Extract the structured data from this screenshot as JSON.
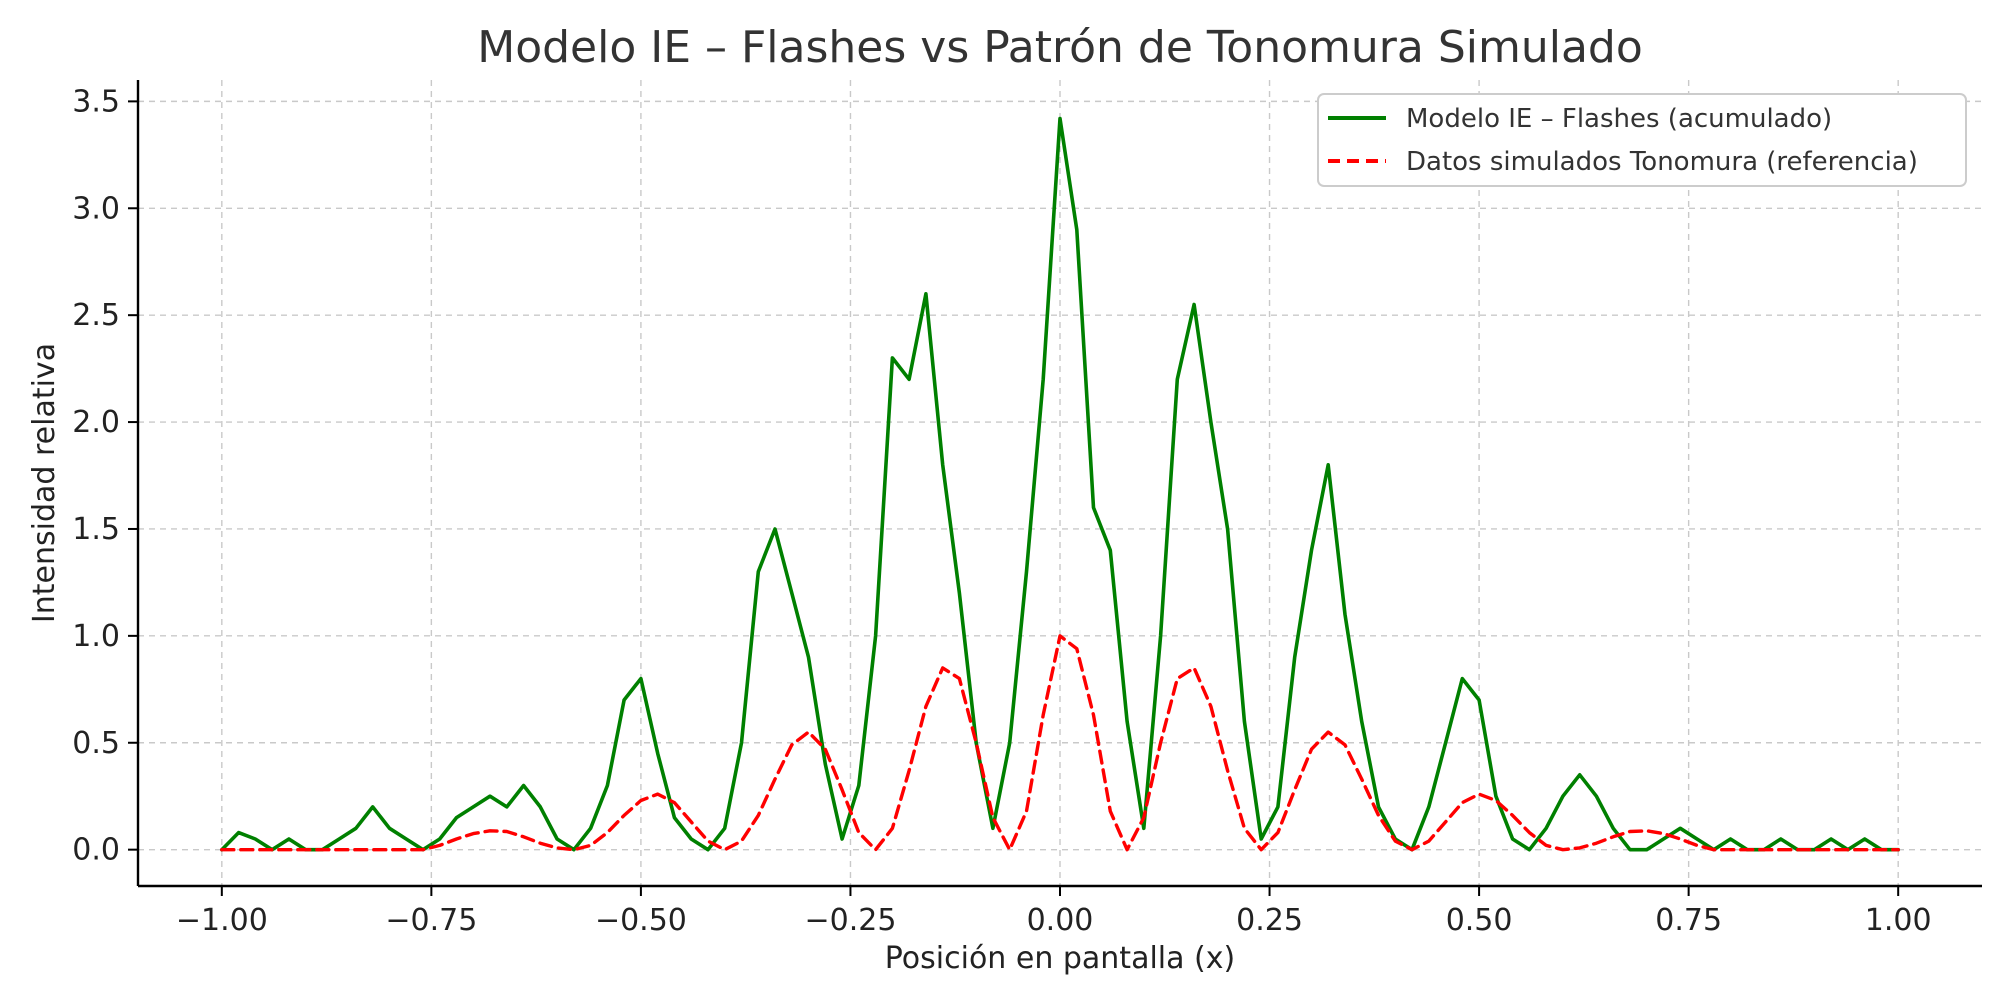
{
  "chart_data": {
    "type": "line",
    "title": "Modelo IE – Flashes vs Patrón de Tonomura Simulado",
    "xlabel": "Posición en pantalla (x)",
    "ylabel": "Intensidad relativa",
    "xlim": [
      -1.1,
      1.1
    ],
    "ylim": [
      -0.17,
      3.6
    ],
    "xticks": [
      -1.0,
      -0.75,
      -0.5,
      -0.25,
      0.0,
      0.25,
      0.5,
      0.75,
      1.0
    ],
    "xtick_labels": [
      "−1.00",
      "−0.75",
      "−0.50",
      "−0.25",
      "0.00",
      "0.25",
      "0.50",
      "0.75",
      "1.00"
    ],
    "yticks": [
      0.0,
      0.5,
      1.0,
      1.5,
      2.0,
      2.5,
      3.0,
      3.5
    ],
    "ytick_labels": [
      "0.0",
      "0.5",
      "1.0",
      "1.5",
      "2.0",
      "2.5",
      "3.0",
      "3.5"
    ],
    "grid": true,
    "legend_position": "top-right",
    "series": [
      {
        "name": "Modelo IE – Flashes (acumulado)",
        "color": "#008000",
        "style": "solid",
        "x": [
          -1.0,
          -0.98,
          -0.96,
          -0.94,
          -0.92,
          -0.9,
          -0.88,
          -0.86,
          -0.84,
          -0.82,
          -0.8,
          -0.78,
          -0.76,
          -0.74,
          -0.72,
          -0.7,
          -0.68,
          -0.66,
          -0.64,
          -0.62,
          -0.6,
          -0.58,
          -0.56,
          -0.54,
          -0.52,
          -0.5,
          -0.48,
          -0.46,
          -0.44,
          -0.42,
          -0.4,
          -0.38,
          -0.36,
          -0.34,
          -0.32,
          -0.3,
          -0.28,
          -0.26,
          -0.24,
          -0.22,
          -0.2,
          -0.18,
          -0.16,
          -0.14,
          -0.12,
          -0.1,
          -0.08,
          -0.06,
          -0.04,
          -0.02,
          0.0,
          0.02,
          0.04,
          0.06,
          0.08,
          0.1,
          0.12,
          0.14,
          0.16,
          0.18,
          0.2,
          0.22,
          0.24,
          0.26,
          0.28,
          0.3,
          0.32,
          0.34,
          0.36,
          0.38,
          0.4,
          0.42,
          0.44,
          0.46,
          0.48,
          0.5,
          0.52,
          0.54,
          0.56,
          0.58,
          0.6,
          0.62,
          0.64,
          0.66,
          0.68,
          0.7,
          0.72,
          0.74,
          0.76,
          0.78,
          0.8,
          0.82,
          0.84,
          0.86,
          0.88,
          0.9,
          0.92,
          0.94,
          0.96,
          0.98,
          1.0
        ],
        "y": [
          0.0,
          0.08,
          0.05,
          0.0,
          0.05,
          0.0,
          0.0,
          0.05,
          0.1,
          0.2,
          0.1,
          0.05,
          0.0,
          0.05,
          0.15,
          0.2,
          0.25,
          0.2,
          0.3,
          0.2,
          0.05,
          0.0,
          0.1,
          0.3,
          0.7,
          0.8,
          0.45,
          0.15,
          0.05,
          0.0,
          0.1,
          0.5,
          1.3,
          1.5,
          1.2,
          0.9,
          0.4,
          0.05,
          0.3,
          1.0,
          2.3,
          2.2,
          2.6,
          1.8,
          1.2,
          0.5,
          0.1,
          0.5,
          1.3,
          2.2,
          3.42,
          2.9,
          1.6,
          1.4,
          0.6,
          0.1,
          1.0,
          2.2,
          2.55,
          2.0,
          1.5,
          0.6,
          0.05,
          0.2,
          0.9,
          1.4,
          1.8,
          1.1,
          0.6,
          0.2,
          0.05,
          0.0,
          0.2,
          0.5,
          0.8,
          0.7,
          0.25,
          0.05,
          0.0,
          0.1,
          0.25,
          0.35,
          0.25,
          0.1,
          0.0,
          0.0,
          0.05,
          0.1,
          0.05,
          0.0,
          0.05,
          0.0,
          0.0,
          0.05,
          0.0,
          0.0,
          0.05,
          0.0,
          0.05,
          0.0,
          0.0
        ]
      },
      {
        "name": "Datos simulados Tonomura (referencia)",
        "color": "#ff0000",
        "style": "dashed",
        "x": [
          -1.0,
          -0.98,
          -0.96,
          -0.94,
          -0.92,
          -0.9,
          -0.88,
          -0.86,
          -0.84,
          -0.82,
          -0.8,
          -0.78,
          -0.76,
          -0.74,
          -0.72,
          -0.7,
          -0.68,
          -0.66,
          -0.64,
          -0.62,
          -0.6,
          -0.58,
          -0.56,
          -0.54,
          -0.52,
          -0.5,
          -0.48,
          -0.46,
          -0.44,
          -0.42,
          -0.4,
          -0.38,
          -0.36,
          -0.34,
          -0.32,
          -0.3,
          -0.28,
          -0.26,
          -0.24,
          -0.22,
          -0.2,
          -0.18,
          -0.16,
          -0.14,
          -0.12,
          -0.1,
          -0.08,
          -0.06,
          -0.04,
          -0.02,
          0.0,
          0.02,
          0.04,
          0.06,
          0.08,
          0.1,
          0.12,
          0.14,
          0.16,
          0.18,
          0.2,
          0.22,
          0.24,
          0.26,
          0.28,
          0.3,
          0.32,
          0.34,
          0.36,
          0.38,
          0.4,
          0.42,
          0.44,
          0.46,
          0.48,
          0.5,
          0.52,
          0.54,
          0.56,
          0.58,
          0.6,
          0.62,
          0.64,
          0.66,
          0.68,
          0.7,
          0.72,
          0.74,
          0.76,
          0.78,
          0.8,
          0.82,
          0.84,
          0.86,
          0.88,
          0.9,
          0.92,
          0.94,
          0.96,
          0.98,
          1.0
        ],
        "y": [
          0.0,
          0.0,
          0.0,
          0.0,
          0.0,
          0.0,
          0.0,
          0.0,
          0.0,
          0.0,
          0.0,
          0.0,
          0.0,
          0.02,
          0.05,
          0.075,
          0.088,
          0.085,
          0.06,
          0.03,
          0.008,
          0.0,
          0.02,
          0.08,
          0.16,
          0.23,
          0.26,
          0.22,
          0.13,
          0.04,
          0.0,
          0.04,
          0.16,
          0.33,
          0.49,
          0.55,
          0.47,
          0.28,
          0.08,
          0.0,
          0.1,
          0.37,
          0.67,
          0.85,
          0.8,
          0.5,
          0.15,
          0.0,
          0.18,
          0.63,
          1.0,
          0.94,
          0.63,
          0.18,
          0.0,
          0.15,
          0.5,
          0.8,
          0.85,
          0.67,
          0.37,
          0.1,
          0.0,
          0.08,
          0.28,
          0.47,
          0.55,
          0.49,
          0.33,
          0.16,
          0.04,
          0.0,
          0.04,
          0.13,
          0.22,
          0.26,
          0.23,
          0.16,
          0.08,
          0.02,
          0.0,
          0.008,
          0.03,
          0.06,
          0.085,
          0.088,
          0.075,
          0.05,
          0.02,
          0.0,
          0.0,
          0.0,
          0.0,
          0.0,
          0.0,
          0.0,
          0.0,
          0.0,
          0.0,
          0.0,
          0.0
        ]
      }
    ]
  }
}
